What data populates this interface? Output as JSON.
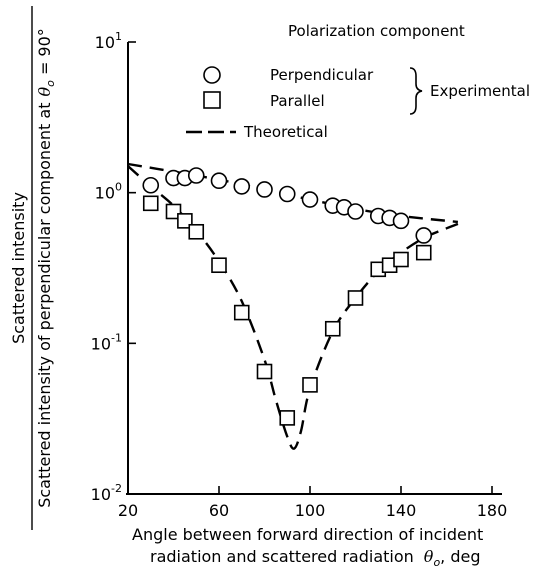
{
  "chart_data": {
    "type": "scatter",
    "xlabel_line1": "Angle between forward direction of incident",
    "xlabel_line2": "radiation and scattered radiation",
    "xlabel_symbol": "θ",
    "xlabel_subscript": "o",
    "xlabel_unit": ", deg",
    "ylabel_numerator": "Scattered intensity",
    "ylabel_denominator": "Scattered intensity of perpendicular component at",
    "ylabel_condition_symbol": "θ",
    "ylabel_condition_subscript": "o",
    "ylabel_condition_value": " = 90°",
    "xlim": [
      20,
      180
    ],
    "ylim": [
      0.01,
      10
    ],
    "yscale": "log",
    "x_ticks": [
      20,
      60,
      100,
      140,
      180
    ],
    "y_ticks": [
      {
        "value": 10,
        "base": "10",
        "exp": "1"
      },
      {
        "value": 1,
        "base": "10",
        "exp": "0"
      },
      {
        "value": 0.1,
        "base": "10",
        "exp": "-1"
      },
      {
        "value": 0.01,
        "base": "10",
        "exp": "-2"
      }
    ],
    "legend": {
      "title": "Polarization component",
      "group_label": "Experimental",
      "placement": "top-right"
    },
    "series": [
      {
        "name": "Perpendicular",
        "marker": "circle",
        "x": [
          30,
          40,
          45,
          50,
          60,
          70,
          80,
          90,
          100,
          110,
          115,
          120,
          130,
          135,
          140,
          150
        ],
        "y": [
          1.12,
          1.25,
          1.25,
          1.3,
          1.2,
          1.1,
          1.05,
          0.98,
          0.9,
          0.82,
          0.8,
          0.75,
          0.7,
          0.68,
          0.65,
          0.52
        ]
      },
      {
        "name": "Parallel",
        "marker": "square",
        "x": [
          30,
          40,
          45,
          50,
          60,
          70,
          80,
          90,
          100,
          110,
          120,
          130,
          135,
          140,
          150
        ],
        "y": [
          0.85,
          0.75,
          0.65,
          0.55,
          0.33,
          0.16,
          0.065,
          0.032,
          0.053,
          0.125,
          0.2,
          0.31,
          0.33,
          0.36,
          0.4
        ]
      },
      {
        "name": "Theoretical",
        "style": "dashed",
        "x": [
          20,
          40,
          60,
          80,
          100,
          120,
          140,
          165
        ],
        "y": [
          1.55,
          1.38,
          1.22,
          1.05,
          0.9,
          0.78,
          0.7,
          0.64
        ]
      },
      {
        "name": "Theoretical",
        "style": "dashed",
        "x": [
          20,
          30,
          40,
          50,
          60,
          70,
          80,
          85,
          90,
          93,
          96,
          100,
          110,
          120,
          130,
          140,
          150,
          160,
          165
        ],
        "y": [
          1.5,
          1.1,
          0.82,
          0.56,
          0.35,
          0.19,
          0.078,
          0.042,
          0.024,
          0.02,
          0.026,
          0.05,
          0.12,
          0.2,
          0.3,
          0.4,
          0.5,
          0.58,
          0.62
        ]
      }
    ]
  }
}
